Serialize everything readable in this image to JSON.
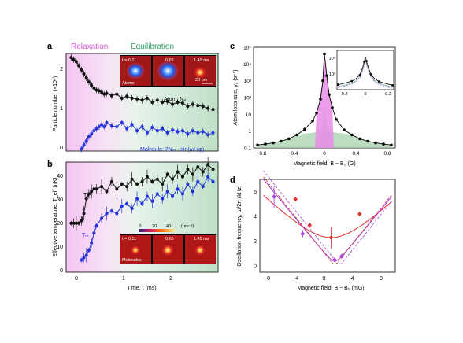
{
  "colors": {
    "relaxation": "#e79be6",
    "equilibration": "#66b88c",
    "atom": "#111111",
    "molecule": "#2233dd",
    "fit_red": "#e0302a",
    "fit_purple": "#a23bd9",
    "shade_pink": "#e88be6",
    "shade_green": "#9fcfa8"
  },
  "panels": {
    "a": {
      "letter": "a",
      "phase_left": "Relaxation",
      "phase_right": "Equilibration",
      "ylabel": "Particle number (×10⁴)",
      "y_ticks": [
        "0",
        "1",
        "2"
      ],
      "atom_label": "Atom: Nₐ",
      "molecule_label": "Molecule: 2Nₘ · sin(ωt+φ)",
      "inset_atoms": {
        "label": "Atoms",
        "times": [
          "t = 0.11",
          "0.65",
          "1.49 ms"
        ],
        "scale": "20 μm"
      }
    },
    "b": {
      "letter": "b",
      "ylabel": "Effective temperature, T_eff (nK)",
      "y_ticks": [
        "0",
        "10",
        "20",
        "30",
        "40"
      ],
      "x_ticks": [
        "0",
        "1",
        "2"
      ],
      "xlabel": "Time, t (ms)",
      "ta_label": "Tₐ",
      "tm_label": "Tₘ",
      "colorbar_ticks": [
        "0",
        "20",
        "40"
      ],
      "colorbar_unit": "(μm⁻²)",
      "inset_molecules": {
        "label": "Molecules",
        "times": [
          "t = 0.11",
          "0.65",
          "1.49 ms"
        ]
      }
    },
    "c": {
      "letter": "c",
      "ylabel": "Atom loss rate, γₐ (s⁻¹)",
      "xlabel": "Magnetic field, B − B₀ (G)",
      "y_ticks": [
        "0.1",
        "1",
        "10",
        "10²",
        "10³",
        "10⁴",
        "10⁵"
      ],
      "x_ticks": [
        "−0.8",
        "−0.4",
        "0",
        "0.4",
        "0.8"
      ],
      "inset_x_ticks": [
        "−0.2",
        "0",
        "0.2"
      ],
      "inset_y_ticks": [
        "10²",
        "10⁴"
      ]
    },
    "d": {
      "letter": "d",
      "ylabel": "Oscillation frequency, ω/2π (kHz)",
      "xlabel": "Magnetic field, B − B₀ (mG)",
      "y_ticks": [
        "0",
        "2",
        "4",
        "6"
      ],
      "x_ticks": [
        "−8",
        "−4",
        "0",
        "4",
        "8"
      ]
    }
  },
  "chart_data": [
    {
      "type": "scatter",
      "panel": "a",
      "xlim": [
        -0.2,
        2.8
      ],
      "ylim": [
        0,
        2.4
      ],
      "series": [
        {
          "name": "Atom: Nₐ",
          "x": [
            -0.1,
            -0.05,
            0,
            0.05,
            0.1,
            0.15,
            0.2,
            0.25,
            0.3,
            0.35,
            0.4,
            0.45,
            0.5,
            0.55,
            0.6,
            0.7,
            0.8,
            0.9,
            1.0,
            1.1,
            1.2,
            1.3,
            1.4,
            1.5,
            1.6,
            1.7,
            1.8,
            1.9,
            2.0,
            2.1,
            2.2,
            2.3,
            2.4,
            2.5,
            2.6,
            2.7
          ],
          "y": [
            2.3,
            2.25,
            2.2,
            2.1,
            2.0,
            1.9,
            1.8,
            1.7,
            1.62,
            1.55,
            1.5,
            1.48,
            1.45,
            1.4,
            1.42,
            1.36,
            1.4,
            1.3,
            1.35,
            1.3,
            1.28,
            1.25,
            1.3,
            1.2,
            1.25,
            1.2,
            1.22,
            1.15,
            1.2,
            1.18,
            1.1,
            1.15,
            1.12,
            1.1,
            1.05,
            1.02
          ]
        },
        {
          "name": "Molecule: 2Nₘ · sin(ωt+φ)",
          "x": [
            0.1,
            0.15,
            0.2,
            0.25,
            0.3,
            0.35,
            0.4,
            0.45,
            0.5,
            0.55,
            0.6,
            0.7,
            0.8,
            0.9,
            1.0,
            1.1,
            1.2,
            1.3,
            1.4,
            1.5,
            1.6,
            1.7,
            1.8,
            1.9,
            2.0,
            2.1,
            2.2,
            2.3,
            2.4,
            2.5,
            2.6,
            2.7
          ],
          "y": [
            0.05,
            0.15,
            0.25,
            0.35,
            0.42,
            0.5,
            0.55,
            0.6,
            0.65,
            0.6,
            0.7,
            0.62,
            0.6,
            0.7,
            0.55,
            0.65,
            0.5,
            0.6,
            0.45,
            0.58,
            0.5,
            0.55,
            0.45,
            0.52,
            0.48,
            0.5,
            0.42,
            0.5,
            0.45,
            0.48,
            0.4,
            0.45
          ]
        }
      ]
    },
    {
      "type": "scatter",
      "panel": "b",
      "xlim": [
        -0.2,
        2.8
      ],
      "ylim": [
        0,
        45
      ],
      "series": [
        {
          "name": "Tₐ",
          "x": [
            -0.1,
            -0.05,
            0,
            0.05,
            0.1,
            0.15,
            0.2,
            0.25,
            0.3,
            0.35,
            0.4,
            0.5,
            0.6,
            0.7,
            0.8,
            0.9,
            1.0,
            1.1,
            1.2,
            1.3,
            1.4,
            1.5,
            1.6,
            1.7,
            1.8,
            1.9,
            2.0,
            2.1,
            2.2,
            2.3,
            2.4,
            2.5,
            2.6,
            2.7
          ],
          "y": [
            20,
            20,
            20,
            20,
            21,
            24,
            30,
            32,
            33,
            34,
            34,
            35,
            33,
            37,
            34,
            36,
            35,
            38,
            36,
            37,
            39,
            37,
            38,
            36,
            40,
            38,
            41,
            39,
            42,
            40,
            43,
            41,
            44,
            42
          ]
        },
        {
          "name": "Tₘ",
          "x": [
            0.1,
            0.15,
            0.2,
            0.25,
            0.3,
            0.35,
            0.4,
            0.5,
            0.6,
            0.7,
            0.8,
            0.9,
            1.0,
            1.1,
            1.2,
            1.3,
            1.4,
            1.5,
            1.6,
            1.7,
            1.8,
            1.9,
            2.0,
            2.1,
            2.2,
            2.3,
            2.4,
            2.5,
            2.6,
            2.7
          ],
          "y": [
            5,
            6,
            7,
            9,
            12,
            16,
            19,
            22,
            24,
            25,
            24,
            27,
            28,
            26,
            30,
            28,
            31,
            29,
            32,
            30,
            33,
            31,
            34,
            32,
            36,
            33,
            37,
            35,
            39,
            37
          ]
        }
      ]
    },
    {
      "type": "line",
      "panel": "c",
      "xlim": [
        -0.9,
        0.9
      ],
      "ylim_log10": [
        -1,
        5
      ],
      "series": [
        {
          "name": "",
          "x": [
            -0.85,
            -0.75,
            -0.65,
            -0.55,
            -0.45,
            -0.35,
            -0.25,
            -0.15,
            -0.1,
            -0.05,
            -0.02,
            0,
            0.03,
            0.06,
            0.1,
            0.15,
            0.25,
            0.35,
            0.45,
            0.55,
            0.65,
            0.75,
            0.85
          ],
          "y": [
            0.15,
            0.17,
            0.2,
            0.25,
            0.35,
            0.6,
            1.3,
            4,
            12,
            80,
            1000,
            40000,
            2000,
            150,
            25,
            5,
            1.2,
            0.6,
            0.35,
            0.25,
            0.2,
            0.17,
            0.15
          ]
        }
      ]
    },
    {
      "type": "scatter",
      "panel": "d",
      "xlim": [
        -9,
        10
      ],
      "ylim": [
        -0.5,
        7
      ],
      "series": [
        {
          "name": "",
          "x": [
            -4,
            -2,
            1,
            5
          ],
          "y": [
            5.4,
            3.3,
            2.3,
            4.2
          ],
          "err": [
            0.2,
            0.2,
            0.9,
            0.2
          ]
        },
        {
          "name": "",
          "x": [
            -7,
            -3,
            1.5,
            2.5
          ],
          "y": [
            5.6,
            2.6,
            0.5,
            0.8
          ],
          "err": [
            0.9,
            0.3,
            0.2,
            0.2
          ]
        }
      ]
    }
  ]
}
